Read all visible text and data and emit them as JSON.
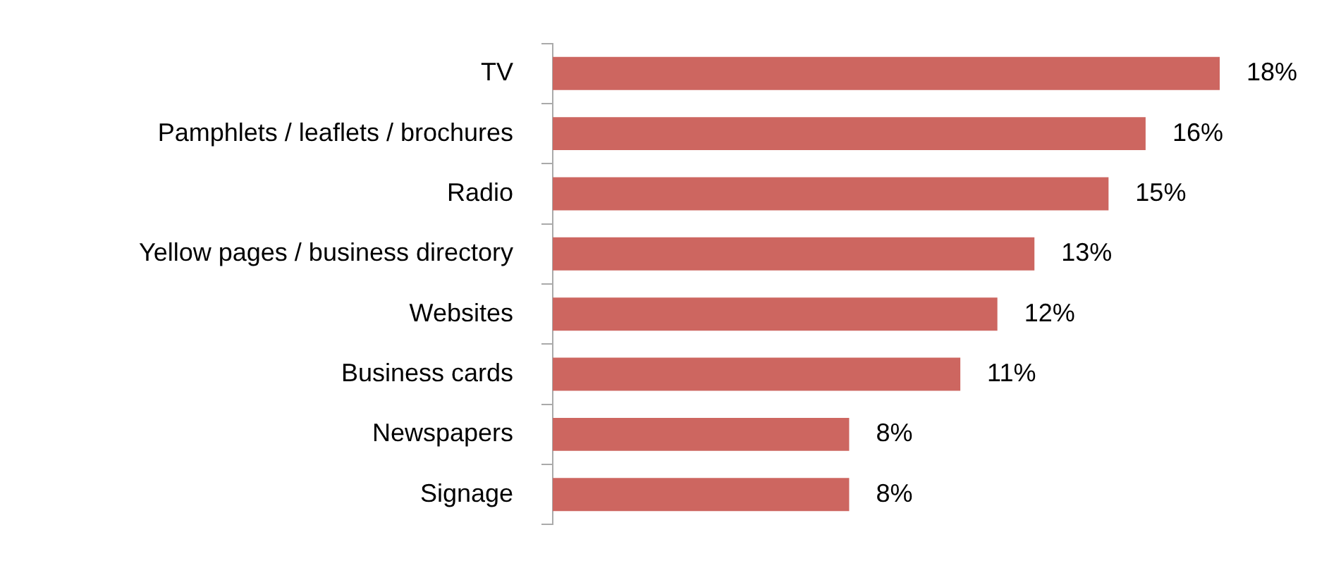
{
  "chart_data": {
    "type": "bar",
    "orientation": "horizontal",
    "categories": [
      "TV",
      "Pamphlets / leaflets / brochures",
      "Radio",
      "Yellow pages / business directory",
      "Websites",
      "Business cards",
      "Newspapers",
      "Signage"
    ],
    "values": [
      18,
      16,
      15,
      13,
      12,
      11,
      8,
      8
    ],
    "color": "#cd6660",
    "value_labels": [
      "18%",
      "16%",
      "15%",
      "13%",
      "12%",
      "11%",
      "8%",
      "8%"
    ]
  }
}
